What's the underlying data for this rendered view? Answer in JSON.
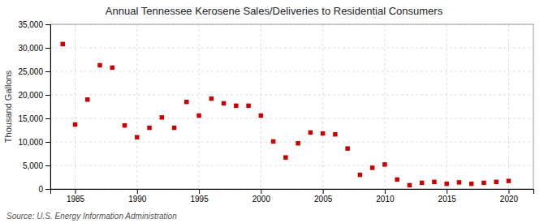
{
  "chart_data": {
    "type": "scatter",
    "title": "Annual Tennessee Kerosene Sales/Deliveries to Residential Consumers",
    "ylabel": "Thousand Gallons",
    "source": "Source: U.S. Energy Information Administration",
    "color": "#cc0000",
    "marker": "square",
    "grid": true,
    "xlim": [
      1983,
      2022
    ],
    "xticks": [
      1985,
      1990,
      1995,
      2000,
      2005,
      2010,
      2015,
      2020
    ],
    "ylim": [
      0,
      35000
    ],
    "yticks": [
      0,
      {
        "value": 5000,
        "label": "5,000"
      },
      {
        "value": 10000,
        "label": "10,000"
      },
      {
        "value": 15000,
        "label": "15,000"
      },
      {
        "value": 20000,
        "label": "20,000"
      },
      {
        "value": 25000,
        "label": "25,000"
      },
      {
        "value": 30000,
        "label": "30,000"
      },
      {
        "value": 35000,
        "label": "35,000"
      }
    ],
    "x": [
      1984,
      1985,
      1986,
      1987,
      1988,
      1989,
      1990,
      1991,
      1992,
      1993,
      1994,
      1995,
      1996,
      1997,
      1998,
      1999,
      2000,
      2001,
      2002,
      2003,
      2004,
      2005,
      2006,
      2007,
      2008,
      2009,
      2010,
      2011,
      2012,
      2013,
      2014,
      2015,
      2016,
      2017,
      2018,
      2019,
      2020
    ],
    "values": [
      30800,
      13700,
      19000,
      26300,
      25800,
      13500,
      11000,
      13000,
      15200,
      13000,
      18500,
      15600,
      19200,
      18200,
      17700,
      17700,
      15600,
      10100,
      6700,
      9700,
      12000,
      11800,
      11600,
      8600,
      3000,
      4500,
      5200,
      2000,
      800,
      1300,
      1500,
      1100,
      1400,
      1100,
      1300,
      1500,
      1700
    ]
  }
}
